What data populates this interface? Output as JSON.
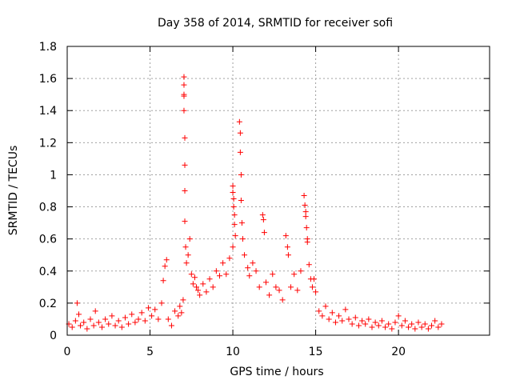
{
  "chart_data": {
    "type": "scatter",
    "title": "Day 358 of 2014, SRMTID for receiver sofi",
    "xlabel": "GPS time / hours",
    "ylabel": "SRMTID / TECUs",
    "xlim": [
      0,
      25.5
    ],
    "ylim": [
      0,
      1.8
    ],
    "x_ticks": [
      0,
      5,
      10,
      15,
      20
    ],
    "x_tick_labels": [
      "0",
      "5",
      "10",
      "15",
      "20"
    ],
    "y_ticks": [
      0,
      0.2,
      0.4,
      0.6,
      0.8,
      1.0,
      1.2,
      1.4,
      1.6,
      1.8
    ],
    "y_tick_labels": [
      "0",
      "0.2",
      "0.4",
      "0.6",
      "0.8",
      "1",
      "1.2",
      "1.4",
      "1.6",
      "1.8"
    ],
    "grid": true,
    "marker": "+",
    "series": [
      {
        "name": "sofi",
        "color": "#ff0000",
        "points": [
          [
            0.1,
            0.07
          ],
          [
            0.3,
            0.05
          ],
          [
            0.5,
            0.09
          ],
          [
            0.6,
            0.2
          ],
          [
            0.7,
            0.13
          ],
          [
            0.8,
            0.06
          ],
          [
            1.0,
            0.08
          ],
          [
            1.2,
            0.04
          ],
          [
            1.4,
            0.1
          ],
          [
            1.6,
            0.06
          ],
          [
            1.7,
            0.15
          ],
          [
            1.9,
            0.08
          ],
          [
            2.1,
            0.05
          ],
          [
            2.3,
            0.1
          ],
          [
            2.5,
            0.07
          ],
          [
            2.7,
            0.12
          ],
          [
            2.9,
            0.06
          ],
          [
            3.1,
            0.09
          ],
          [
            3.3,
            0.05
          ],
          [
            3.5,
            0.11
          ],
          [
            3.7,
            0.07
          ],
          [
            3.9,
            0.13
          ],
          [
            4.1,
            0.08
          ],
          [
            4.3,
            0.1
          ],
          [
            4.5,
            0.14
          ],
          [
            4.7,
            0.09
          ],
          [
            4.9,
            0.17
          ],
          [
            5.1,
            0.12
          ],
          [
            5.3,
            0.16
          ],
          [
            5.5,
            0.1
          ],
          [
            5.7,
            0.2
          ],
          [
            5.8,
            0.34
          ],
          [
            5.9,
            0.43
          ],
          [
            6.0,
            0.47
          ],
          [
            6.1,
            0.1
          ],
          [
            6.3,
            0.06
          ],
          [
            6.5,
            0.15
          ],
          [
            6.7,
            0.12
          ],
          [
            6.8,
            0.18
          ],
          [
            6.9,
            0.14
          ],
          [
            7.0,
            0.22
          ],
          [
            7.05,
            1.61
          ],
          [
            7.05,
            1.56
          ],
          [
            7.05,
            1.5
          ],
          [
            7.05,
            1.49
          ],
          [
            7.05,
            1.4
          ],
          [
            7.1,
            1.23
          ],
          [
            7.1,
            1.06
          ],
          [
            7.1,
            0.9
          ],
          [
            7.1,
            0.71
          ],
          [
            7.15,
            0.55
          ],
          [
            7.2,
            0.45
          ],
          [
            7.3,
            0.5
          ],
          [
            7.4,
            0.6
          ],
          [
            7.5,
            0.38
          ],
          [
            7.6,
            0.32
          ],
          [
            7.7,
            0.36
          ],
          [
            7.8,
            0.3
          ],
          [
            7.9,
            0.28
          ],
          [
            8.0,
            0.25
          ],
          [
            8.2,
            0.32
          ],
          [
            8.4,
            0.27
          ],
          [
            8.6,
            0.35
          ],
          [
            8.8,
            0.3
          ],
          [
            9.0,
            0.4
          ],
          [
            9.2,
            0.37
          ],
          [
            9.4,
            0.45
          ],
          [
            9.6,
            0.38
          ],
          [
            9.8,
            0.48
          ],
          [
            10.0,
            0.55
          ],
          [
            10.0,
            0.93
          ],
          [
            10.0,
            0.89
          ],
          [
            10.05,
            0.85
          ],
          [
            10.05,
            0.8
          ],
          [
            10.1,
            0.75
          ],
          [
            10.1,
            0.69
          ],
          [
            10.15,
            0.62
          ],
          [
            10.4,
            1.33
          ],
          [
            10.45,
            1.26
          ],
          [
            10.45,
            1.14
          ],
          [
            10.5,
            1.0
          ],
          [
            10.5,
            0.84
          ],
          [
            10.55,
            0.7
          ],
          [
            10.6,
            0.6
          ],
          [
            10.7,
            0.5
          ],
          [
            10.9,
            0.42
          ],
          [
            11.0,
            0.37
          ],
          [
            11.2,
            0.45
          ],
          [
            11.4,
            0.4
          ],
          [
            11.6,
            0.3
          ],
          [
            11.8,
            0.75
          ],
          [
            11.85,
            0.72
          ],
          [
            11.9,
            0.64
          ],
          [
            12.0,
            0.33
          ],
          [
            12.2,
            0.25
          ],
          [
            12.4,
            0.38
          ],
          [
            12.6,
            0.3
          ],
          [
            12.8,
            0.28
          ],
          [
            13.0,
            0.22
          ],
          [
            13.2,
            0.62
          ],
          [
            13.3,
            0.55
          ],
          [
            13.35,
            0.5
          ],
          [
            13.5,
            0.3
          ],
          [
            13.7,
            0.38
          ],
          [
            13.9,
            0.28
          ],
          [
            14.1,
            0.4
          ],
          [
            14.3,
            0.87
          ],
          [
            14.35,
            0.81
          ],
          [
            14.4,
            0.77
          ],
          [
            14.4,
            0.74
          ],
          [
            14.45,
            0.67
          ],
          [
            14.5,
            0.6
          ],
          [
            14.5,
            0.58
          ],
          [
            14.6,
            0.44
          ],
          [
            14.7,
            0.35
          ],
          [
            14.8,
            0.3
          ],
          [
            14.9,
            0.35
          ],
          [
            15.0,
            0.27
          ],
          [
            15.2,
            0.15
          ],
          [
            15.4,
            0.12
          ],
          [
            15.6,
            0.18
          ],
          [
            15.8,
            0.1
          ],
          [
            16.0,
            0.14
          ],
          [
            16.2,
            0.08
          ],
          [
            16.4,
            0.12
          ],
          [
            16.6,
            0.09
          ],
          [
            16.8,
            0.16
          ],
          [
            17.0,
            0.1
          ],
          [
            17.2,
            0.07
          ],
          [
            17.4,
            0.11
          ],
          [
            17.6,
            0.06
          ],
          [
            17.8,
            0.09
          ],
          [
            18.0,
            0.07
          ],
          [
            18.2,
            0.1
          ],
          [
            18.4,
            0.05
          ],
          [
            18.6,
            0.08
          ],
          [
            18.8,
            0.06
          ],
          [
            19.0,
            0.09
          ],
          [
            19.2,
            0.05
          ],
          [
            19.4,
            0.07
          ],
          [
            19.6,
            0.04
          ],
          [
            19.8,
            0.08
          ],
          [
            20.0,
            0.12
          ],
          [
            20.2,
            0.06
          ],
          [
            20.4,
            0.09
          ],
          [
            20.6,
            0.05
          ],
          [
            20.8,
            0.07
          ],
          [
            21.0,
            0.04
          ],
          [
            21.2,
            0.08
          ],
          [
            21.4,
            0.05
          ],
          [
            21.6,
            0.07
          ],
          [
            21.8,
            0.04
          ],
          [
            22.0,
            0.06
          ],
          [
            22.2,
            0.09
          ],
          [
            22.4,
            0.05
          ],
          [
            22.6,
            0.07
          ]
        ]
      }
    ]
  }
}
